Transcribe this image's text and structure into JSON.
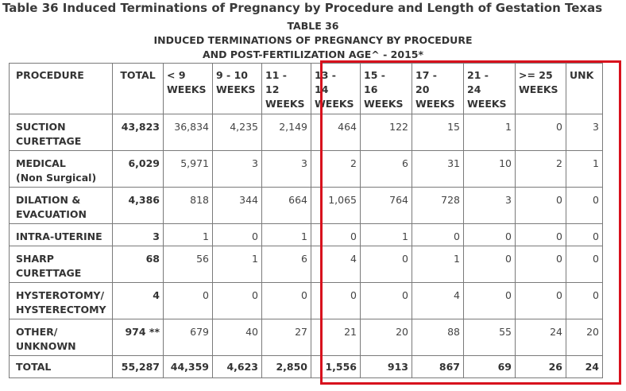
{
  "page": {
    "title": "Table 36 Induced Terminations of Pregnancy by Procedure and Length of Gestation Texas",
    "subtitle_1": "TABLE 36",
    "subtitle_2": "INDUCED TERMINATIONS OF PREGNANCY BY PROCEDURE",
    "subtitle_3": "AND POST-FERTILIZATION AGE^ - 2015*"
  },
  "table": {
    "headers": [
      [
        "PROCEDURE"
      ],
      [
        "TOTAL"
      ],
      [
        "< 9",
        "WEEKS"
      ],
      [
        "9 - 10",
        "WEEKS"
      ],
      [
        "11 -",
        "12",
        "WEEKS"
      ],
      [
        "13 -",
        "14",
        "WEEKS"
      ],
      [
        "15 -",
        "16",
        "WEEKS"
      ],
      [
        "17 -",
        "20",
        "WEEKS"
      ],
      [
        "21 -",
        "24",
        "WEEKS"
      ],
      [
        ">= 25",
        "WEEKS"
      ],
      [
        "UNK"
      ]
    ],
    "rows": [
      {
        "procedure": [
          "SUCTION",
          "CURETTAGE"
        ],
        "cells": [
          "43,823",
          "36,834",
          "4,235",
          "2,149",
          "464",
          "122",
          "15",
          "1",
          "0",
          "3"
        ]
      },
      {
        "procedure": [
          "MEDICAL",
          "(Non Surgical)"
        ],
        "cells": [
          "6,029",
          "5,971",
          "3",
          "3",
          "2",
          "6",
          "31",
          "10",
          "2",
          "1"
        ]
      },
      {
        "procedure": [
          "DILATION &",
          "EVACUATION"
        ],
        "cells": [
          "4,386",
          "818",
          "344",
          "664",
          "1,065",
          "764",
          "728",
          "3",
          "0",
          "0"
        ]
      },
      {
        "procedure": [
          "INTRA-UTERINE"
        ],
        "cells": [
          "3",
          "1",
          "0",
          "1",
          "0",
          "1",
          "0",
          "0",
          "0",
          "0"
        ]
      },
      {
        "procedure": [
          "SHARP",
          "CURETTAGE"
        ],
        "cells": [
          "68",
          "56",
          "1",
          "6",
          "4",
          "0",
          "1",
          "0",
          "0",
          "0"
        ]
      },
      {
        "procedure": [
          "HYSTEROTOMY/",
          "HYSTERECTOMY"
        ],
        "cells": [
          "4",
          "0",
          "0",
          "0",
          "0",
          "0",
          "4",
          "0",
          "0",
          "0"
        ]
      },
      {
        "procedure": [
          "OTHER/",
          "UNKNOWN"
        ],
        "cells": [
          "974 **",
          "679",
          "40",
          "27",
          "21",
          "20",
          "88",
          "55",
          "24",
          "20"
        ]
      }
    ],
    "total_row": {
      "procedure": "TOTAL",
      "cells": [
        "55,287",
        "44,359",
        "4,623",
        "2,850",
        "1,556",
        "913",
        "867",
        "69",
        "26",
        "24"
      ]
    }
  },
  "highlight": {
    "color": "#d8111d",
    "covers_columns": [
      "13 - 14 WEEKS",
      "15 - 16 WEEKS",
      "17 - 20 WEEKS",
      "21 - 24 WEEKS",
      ">= 25 WEEKS",
      "UNK"
    ]
  }
}
